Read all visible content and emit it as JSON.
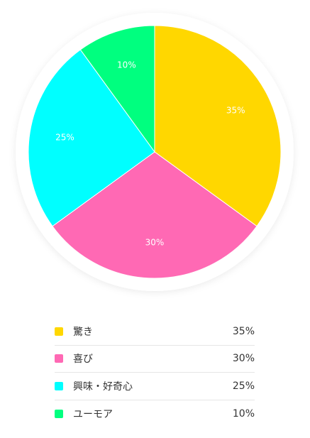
{
  "chart_data": {
    "type": "pie",
    "categories": [
      "驚き",
      "喜び",
      "興味・好奇心",
      "ユーモア"
    ],
    "values": [
      35,
      30,
      25,
      10
    ],
    "value_labels": [
      "35%",
      "30%",
      "25%",
      "10%"
    ],
    "colors": [
      "#FFD700",
      "#FF69B4",
      "#00FFFF",
      "#00FF7F"
    ],
    "start_angle": "top",
    "direction": "clockwise",
    "legend_position": "bottom"
  },
  "legend": {
    "items": [
      {
        "label": "驚き",
        "value": "35%",
        "color": "#FFD700"
      },
      {
        "label": "喜び",
        "value": "30%",
        "color": "#FF69B4"
      },
      {
        "label": "興味・好奇心",
        "value": "25%",
        "color": "#00FFFF"
      },
      {
        "label": "ユーモア",
        "value": "10%",
        "color": "#00FF7F"
      }
    ]
  }
}
